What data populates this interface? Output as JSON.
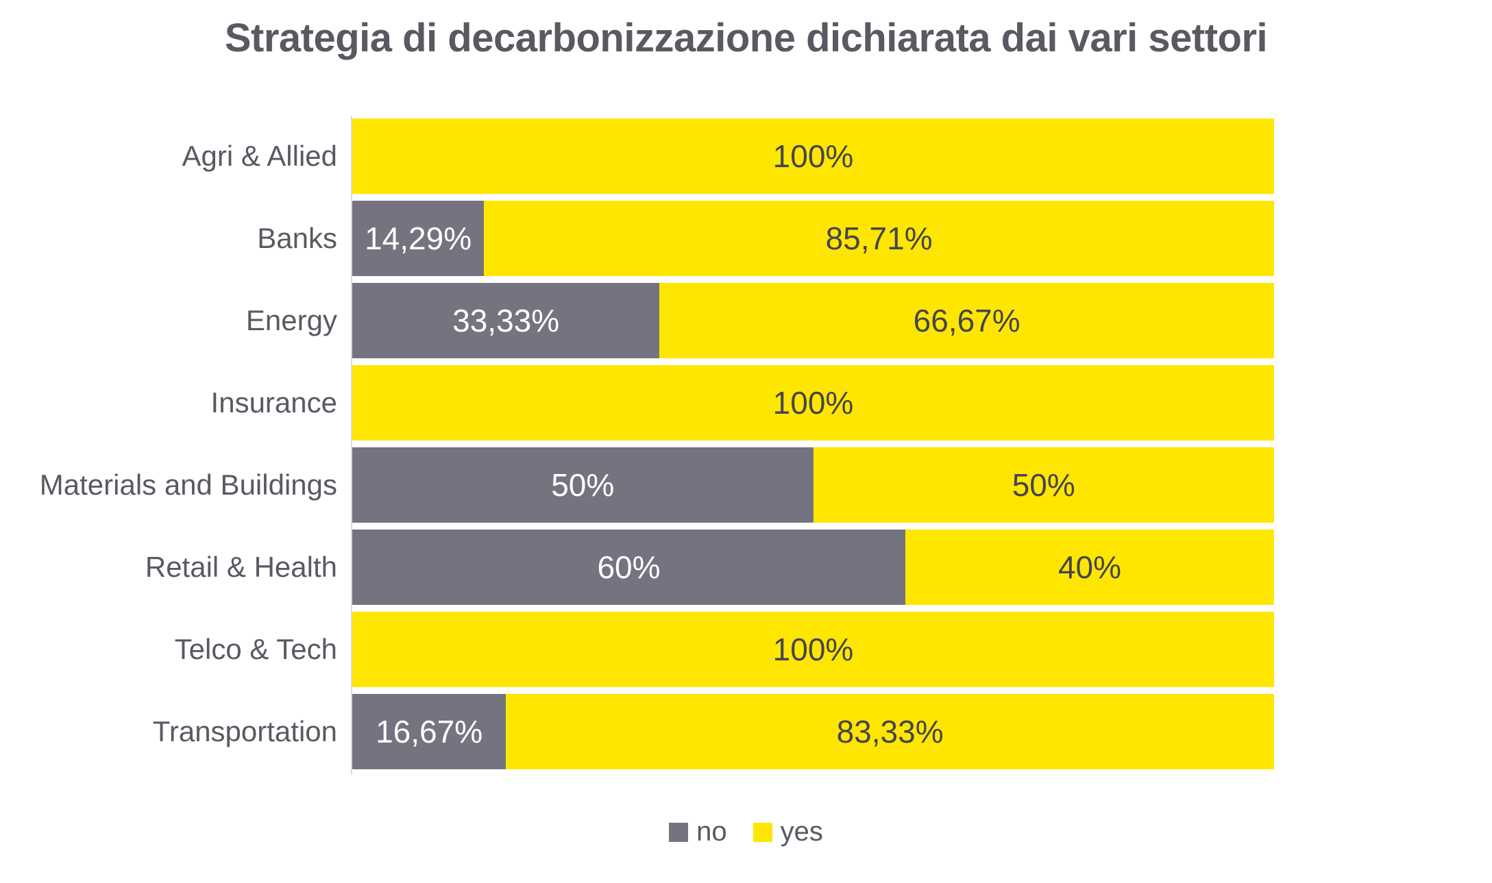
{
  "chart_data": {
    "type": "bar",
    "orientation": "horizontal-stacked",
    "title": "Strategia di decarbonizzazione dichiarata dai vari settori",
    "categories": [
      "Agri & Allied",
      "Banks",
      "Energy",
      "Insurance",
      "Materials and Buildings",
      "Retail & Health",
      "Telco & Tech",
      "Transportation"
    ],
    "series": [
      {
        "name": "no",
        "color": "#747480",
        "label_color": "#FFFFFF",
        "values": [
          0,
          14.29,
          33.33,
          0,
          50,
          60,
          0,
          16.67
        ],
        "labels": [
          "",
          "14,29%",
          "33,33%",
          "",
          "50%",
          "60%",
          "",
          "16,67%"
        ]
      },
      {
        "name": "yes",
        "color": "#FFE600",
        "label_color": "#45454D",
        "values": [
          100,
          85.71,
          66.67,
          100,
          50,
          40,
          100,
          83.33
        ],
        "labels": [
          "100%",
          "85,71%",
          "66,67%",
          "100%",
          "50%",
          "40%",
          "100%",
          "83,33%"
        ]
      }
    ],
    "xlim": [
      0,
      100
    ],
    "grid": false,
    "legend": {
      "position": "bottom",
      "entries": [
        "no",
        "yes"
      ]
    }
  },
  "colors": {
    "background": "#FFFFFF",
    "title_text": "#595962",
    "category_text": "#595962",
    "axis_line": "#D9D9D9",
    "legend_text": "#595962"
  }
}
